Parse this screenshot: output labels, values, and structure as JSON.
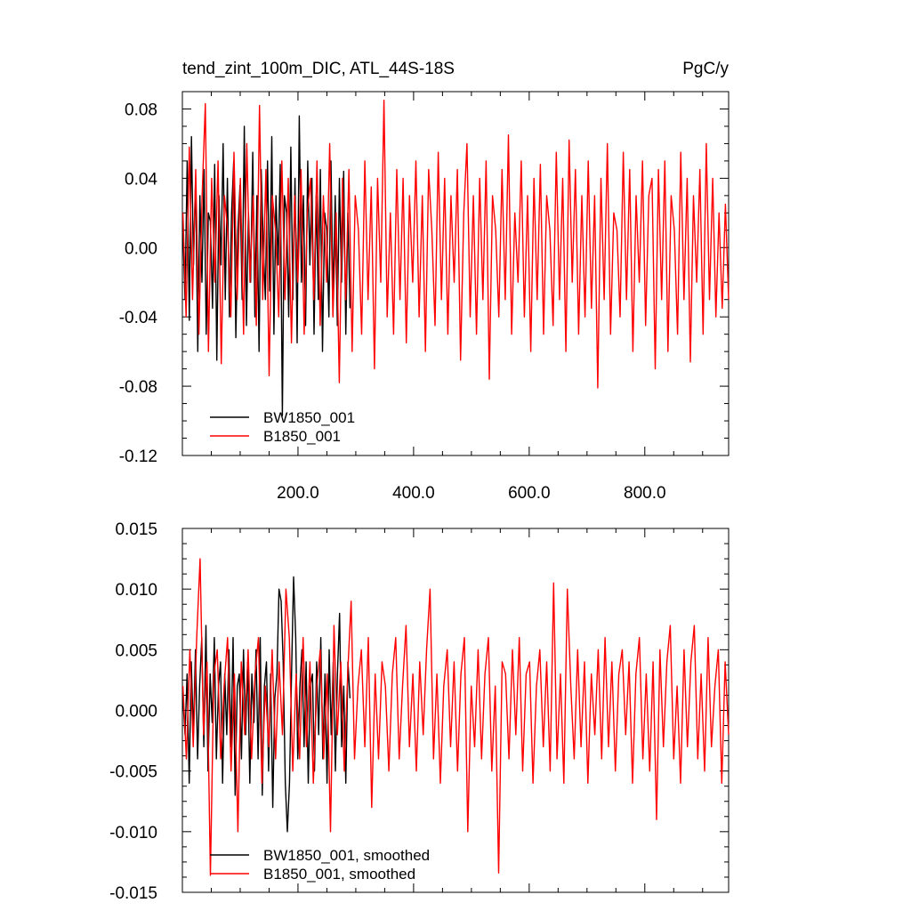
{
  "chart_data": [
    {
      "type": "line",
      "title": "tend_zint_100m_DIC, ATL_44S-18S",
      "units": "PgC/y",
      "xlim": [
        0,
        945
      ],
      "ylim": [
        -0.12,
        0.09
      ],
      "yticks": [
        -0.12,
        -0.08,
        -0.04,
        0.0,
        0.04,
        0.08
      ],
      "ytick_labels": [
        "-0.12",
        "-0.08",
        "-0.04",
        "0.00",
        "0.04",
        "0.08"
      ],
      "xticks": [
        200,
        400,
        600,
        800
      ],
      "xtick_labels": [
        "200.0",
        "400.0",
        "600.0",
        "800.0"
      ],
      "legend": "bottom-left",
      "series": [
        {
          "name": "BW1850_001",
          "color": "#000000",
          "x_range": [
            1,
            290
          ],
          "values": [
            0.01,
            -0.03,
            0.05,
            -0.042,
            0.064,
            -0.01,
            0.04,
            -0.06,
            0.03,
            -0.02,
            0.045,
            -0.05,
            0.02,
            0.015,
            -0.035,
            0.048,
            -0.065,
            0.03,
            -0.01,
            0.06,
            -0.03,
            0.04,
            -0.04,
            0.02,
            0.05,
            -0.052,
            0.01,
            0.036,
            -0.03,
            0.07,
            -0.045,
            0.02,
            -0.02,
            0.055,
            -0.04,
            0.03,
            -0.06,
            0.045,
            0.0,
            -0.03,
            0.05,
            -0.025,
            0.064,
            -0.05,
            0.03,
            -0.01,
            0.048,
            -0.097,
            0.03,
            0.02,
            -0.04,
            0.058,
            -0.03,
            0.04,
            -0.055,
            0.076,
            -0.02,
            0.03,
            -0.045,
            0.05,
            -0.01,
            0.04,
            -0.05,
            0.03,
            -0.03,
            0.045,
            -0.06,
            0.02,
            0.01,
            -0.04,
            0.05,
            -0.03,
            0.03,
            -0.045,
            0.04,
            -0.02,
            0.044,
            -0.05,
            0.02,
            -0.035
          ]
        },
        {
          "name": "B1850_001",
          "color": "#ff0000",
          "x_range": [
            1,
            945
          ],
          "values": [
            0.02,
            -0.04,
            0.058,
            -0.03,
            0.045,
            -0.05,
            0.03,
            0.083,
            -0.06,
            0.04,
            -0.02,
            0.05,
            -0.067,
            0.03,
            0.01,
            -0.04,
            0.055,
            -0.03,
            0.04,
            -0.05,
            0.06,
            -0.02,
            0.03,
            -0.045,
            0.082,
            -0.03,
            0.045,
            -0.074,
            0.03,
            0.01,
            -0.04,
            0.05,
            -0.03,
            0.04,
            -0.055,
            0.03,
            -0.02,
            0.045,
            -0.05,
            0.02,
            0.04,
            -0.03,
            0.05,
            -0.045,
            0.03,
            -0.02,
            0.06,
            -0.04,
            0.02,
            -0.078,
            0.04,
            -0.03,
            0.045,
            -0.06,
            0.03,
            0.01,
            -0.05,
            0.05,
            -0.03,
            0.035,
            -0.07,
            0.04,
            -0.02,
            0.085,
            -0.04,
            0.02,
            -0.05,
            0.045,
            -0.03,
            0.04,
            -0.055,
            0.03,
            -0.02,
            0.05,
            -0.04,
            0.03,
            -0.06,
            0.045,
            0.01,
            -0.045,
            0.055,
            -0.03,
            0.04,
            -0.05,
            0.03,
            -0.02,
            0.045,
            -0.065,
            0.02,
            0.06,
            -0.04,
            0.03,
            -0.05,
            0.04,
            -0.03,
            0.05,
            -0.076,
            0.03,
            0.01,
            -0.04,
            0.045,
            -0.03,
            0.065,
            -0.05,
            0.02,
            -0.02,
            0.05,
            -0.04,
            0.03,
            -0.06,
            0.04,
            -0.03,
            0.048,
            -0.05,
            0.03,
            0.01,
            -0.045,
            0.055,
            -0.03,
            0.04,
            -0.06,
            0.062,
            -0.02,
            0.045,
            -0.05,
            0.03,
            -0.04,
            0.05,
            -0.035,
            0.03,
            -0.081,
            0.04,
            -0.03,
            0.06,
            -0.05,
            0.02,
            0.01,
            -0.04,
            0.055,
            -0.03,
            0.045,
            -0.06,
            0.03,
            -0.02,
            0.05,
            -0.045,
            0.03,
            0.04,
            -0.07,
            0.045,
            -0.03,
            0.05,
            -0.06,
            0.03,
            0.01,
            -0.05,
            0.055,
            -0.03,
            0.04,
            -0.066,
            0.03,
            -0.02,
            0.045,
            -0.05,
            0.06,
            -0.03,
            0.04,
            -0.04,
            0.02,
            -0.035,
            0.025,
            -0.03
          ]
        }
      ]
    },
    {
      "type": "line",
      "title": "",
      "xlim": [
        0,
        945
      ],
      "ylim": [
        -0.015,
        0.015
      ],
      "yticks": [
        -0.015,
        -0.01,
        -0.005,
        0.0,
        0.005,
        0.01,
        0.015
      ],
      "ytick_labels": [
        "-0.015",
        "-0.010",
        "-0.005",
        "0.000",
        "0.005",
        "0.010",
        "0.015"
      ],
      "legend": "bottom-left",
      "series": [
        {
          "name": "BW1850_001, smoothed",
          "color": "#000000",
          "x_range": [
            1,
            290
          ],
          "values": [
            0.001,
            -0.002,
            0.003,
            -0.006,
            0.004,
            -0.002,
            0.005,
            -0.004,
            0.002,
            0.006,
            -0.003,
            0.007,
            -0.005,
            0.003,
            -0.001,
            0.006,
            -0.004,
            0.002,
            0.004,
            -0.006,
            0.003,
            -0.002,
            0.005,
            -0.003,
            0.006,
            -0.007,
            0.002,
            0.003,
            -0.004,
            0.005,
            -0.002,
            0.004,
            -0.006,
            0.003,
            -0.001,
            0.005,
            -0.004,
            0.006,
            -0.007,
            0.002,
            0.004,
            -0.005,
            0.003,
            -0.008,
            0.001,
            0.003,
            0.01,
            0.009,
            0.004,
            -0.006,
            -0.01,
            -0.006,
            0.003,
            0.011,
            0.006,
            -0.004,
            0.002,
            0.005,
            -0.003,
            0.004,
            -0.006,
            0.002,
            0.003,
            -0.005,
            0.004,
            -0.002,
            0.006,
            -0.004,
            0.003,
            -0.006,
            0.005,
            -0.002,
            0.004,
            -0.005,
            0.003,
            0.008,
            -0.003,
            0.002,
            -0.006,
            0.004,
            0.001
          ]
        },
        {
          "name": "B1850_001, smoothed",
          "color": "#ff0000",
          "x_range": [
            1,
            945
          ],
          "values": [
            0.002,
            -0.004,
            0.005,
            -0.003,
            0.006,
            0.0125,
            -0.002,
            0.004,
            -0.0136,
            0.003,
            0.005,
            -0.004,
            0.002,
            0.006,
            -0.005,
            0.003,
            -0.01,
            0.004,
            -0.002,
            0.005,
            -0.004,
            0.003,
            0.006,
            -0.006,
            0.002,
            -0.003,
            0.005,
            -0.004,
            0.004,
            -0.002,
            0.01,
            0.006,
            -0.005,
            0.003,
            -0.004,
            0.006,
            -0.003,
            0.004,
            -0.006,
            0.002,
            0.005,
            -0.004,
            0.003,
            -0.01,
            0.007,
            -0.002,
            0.004,
            -0.005,
            0.003,
            0.009,
            -0.004,
            0.002,
            0.005,
            -0.003,
            0.006,
            -0.008,
            0.003,
            -0.004,
            0.004,
            0.002,
            -0.005,
            0.003,
            0.006,
            -0.004,
            0.002,
            0.007,
            -0.003,
            0.003,
            -0.005,
            0.004,
            -0.002,
            0.005,
            0.01,
            -0.004,
            0.003,
            -0.006,
            0.002,
            0.005,
            -0.003,
            0.004,
            -0.005,
            0.003,
            0.006,
            -0.01,
            0.002,
            -0.003,
            0.005,
            -0.004,
            0.003,
            0.006,
            -0.005,
            0.002,
            -0.0134,
            0.004,
            0.003,
            -0.004,
            0.005,
            -0.002,
            0.006,
            -0.005,
            0.003,
            0.004,
            -0.006,
            0.002,
            0.005,
            -0.003,
            0.004,
            -0.005,
            0.0105,
            -0.004,
            0.003,
            -0.006,
            0.01,
            0.002,
            -0.004,
            0.005,
            -0.003,
            0.004,
            -0.006,
            0.003,
            -0.002,
            0.005,
            -0.004,
            0.006,
            -0.003,
            0.004,
            -0.005,
            0.003,
            0.005,
            -0.002,
            0.004,
            -0.006,
            0.003,
            0.006,
            -0.004,
            0.003,
            -0.005,
            0.004,
            -0.009,
            0.005,
            -0.003,
            0.004,
            0.007,
            -0.004,
            0.002,
            -0.006,
            0.005,
            -0.003,
            0.004,
            0.007,
            -0.004,
            0.003,
            -0.005,
            0.006,
            -0.003,
            0.002,
            0.005,
            -0.006,
            0.004,
            -0.002
          ]
        }
      ]
    }
  ]
}
